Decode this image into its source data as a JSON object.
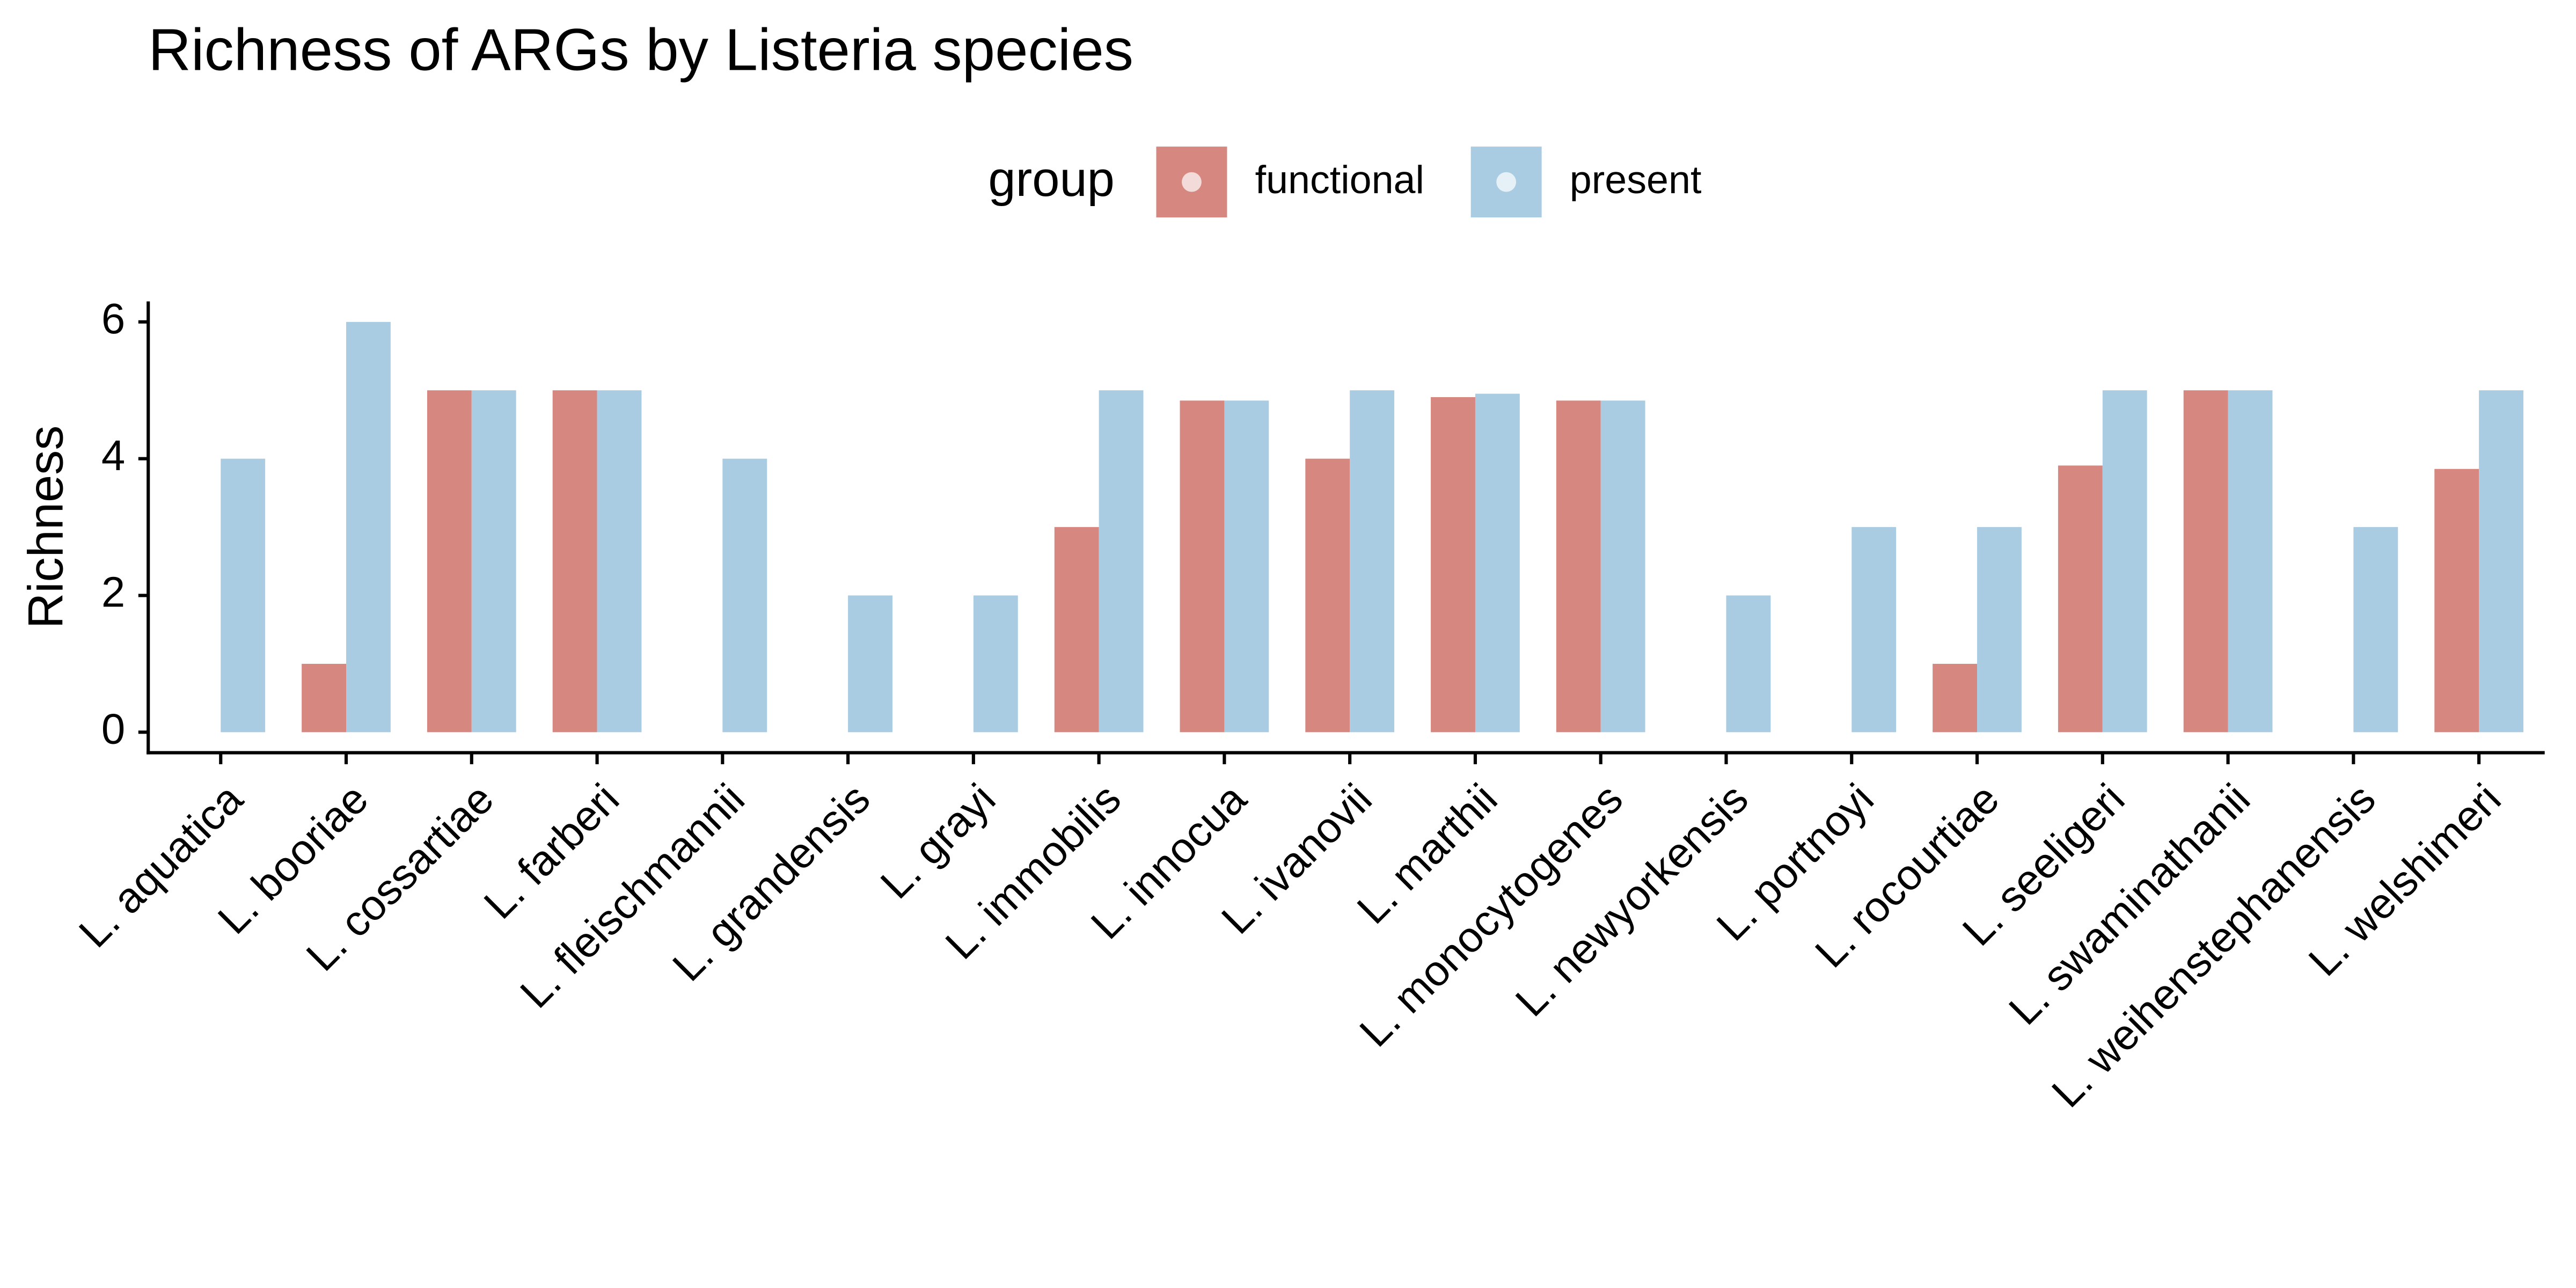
{
  "chart_data": {
    "type": "bar",
    "title": "Richness of ARGs by Listeria species",
    "y_label": "Richness",
    "legend_title": "group",
    "categories": [
      "L. aquatica",
      "L. booriae",
      "L. cossartiae",
      "L. farberi",
      "L. fleischmannii",
      "L. grandensis",
      "L. grayi",
      "L. immobilis",
      "L. innocua",
      "L. ivanovii",
      "L. marthii",
      "L. monocytogenes",
      "L. newyorkensis",
      "L. portnoyi",
      "L. rocourtiae",
      "L. seeligeri",
      "L. swaminathanii",
      "L. weihenstephanensis",
      "L. welshimeri"
    ],
    "series": [
      {
        "name": "functional",
        "color": "#d6877f",
        "values": [
          null,
          1,
          5,
          5,
          null,
          null,
          null,
          3,
          4.85,
          4,
          4.9,
          4.85,
          null,
          null,
          1,
          3.9,
          5,
          null,
          3.85
        ]
      },
      {
        "name": "present",
        "color": "#a9cce3",
        "values": [
          4,
          6,
          5,
          5,
          4,
          2,
          2,
          5,
          4.85,
          5,
          4.95,
          4.85,
          2,
          3,
          3,
          5,
          5,
          3,
          5
        ]
      }
    ],
    "ylim": [
      -0.3,
      6.3
    ],
    "yticks": [
      0,
      2,
      4,
      6
    ],
    "legend_position": "top"
  }
}
